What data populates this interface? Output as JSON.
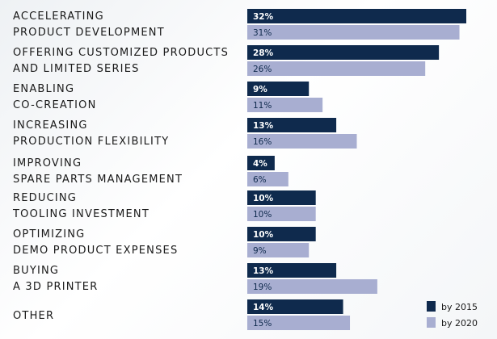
{
  "chart_data": {
    "type": "bar",
    "orientation": "horizontal",
    "categories": [
      [
        "ACCELERATING",
        "PRODUCT DEVELOPMENT"
      ],
      [
        "OFFERING CUSTOMIZED PRODUCTS",
        "AND LIMITED SERIES"
      ],
      [
        "ENABLING",
        "CO-CREATION"
      ],
      [
        "INCREASING",
        "PRODUCTION FLEXIBILITY"
      ],
      [
        "IMPROVING",
        "SPARE PARTS MANAGEMENT"
      ],
      [
        "REDUCING",
        "TOOLING INVESTMENT"
      ],
      [
        "OPTIMIZING",
        "DEMO PRODUCT EXPENSES"
      ],
      [
        "BUYING",
        "A 3D PRINTER"
      ],
      [
        "OTHER"
      ]
    ],
    "series": [
      {
        "name": "by 2015",
        "color": "#0f2a4d",
        "values": [
          32,
          28,
          9,
          13,
          4,
          10,
          10,
          13,
          14
        ],
        "labels": [
          "32%",
          "28%",
          "9%",
          "13%",
          "4%",
          "10%",
          "10%",
          "13%",
          "14%"
        ]
      },
      {
        "name": "by 2020",
        "color": "#a8aed1",
        "values": [
          31,
          26,
          11,
          16,
          6,
          10,
          9,
          19,
          15
        ],
        "labels": [
          "31%",
          "26%",
          "11%",
          "16%",
          "6%",
          "10%",
          "9%",
          "19%",
          "15%"
        ]
      }
    ],
    "xlim": [
      0,
      32
    ],
    "grid": false,
    "legend_position": "bottom-right"
  }
}
